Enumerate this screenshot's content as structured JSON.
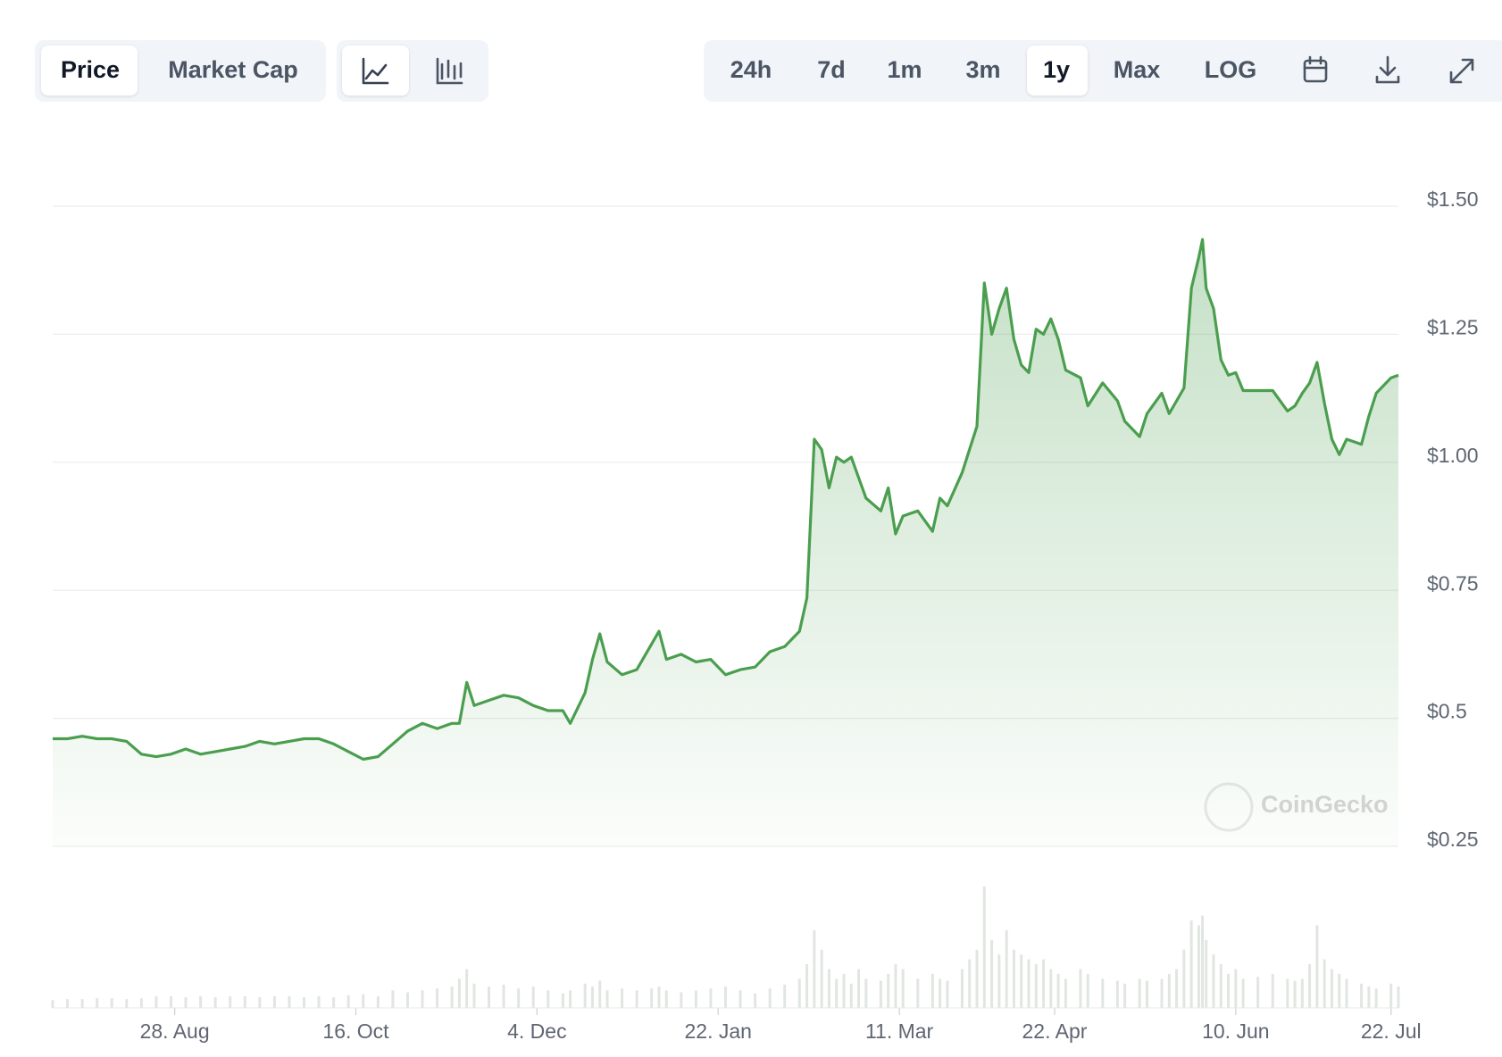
{
  "toolbar": {
    "metrics": [
      "Price",
      "Market Cap"
    ],
    "ranges": [
      "24h",
      "7d",
      "1m",
      "3m",
      "1y",
      "Max",
      "LOG"
    ]
  },
  "chart_data": {
    "type": "area",
    "color": "#4a9e4e",
    "watermark": "CoinGecko",
    "x": [
      0,
      4,
      8,
      12,
      16,
      20,
      24,
      28,
      32,
      36,
      40,
      44,
      48,
      52,
      56,
      60,
      64,
      68,
      72,
      76,
      80,
      84,
      88,
      92,
      96,
      100,
      104,
      108,
      110,
      112,
      114,
      118,
      122,
      126,
      130,
      134,
      138,
      140,
      144,
      146,
      148,
      150,
      154,
      158,
      162,
      164,
      166,
      170,
      174,
      178,
      182,
      186,
      190,
      194,
      198,
      202,
      204,
      206,
      208,
      210,
      212,
      214,
      216,
      218,
      220,
      224,
      226,
      228,
      230,
      234,
      238,
      240,
      242,
      246,
      248,
      250,
      252,
      254,
      256,
      258,
      260,
      262,
      264,
      266,
      268,
      270,
      272,
      274,
      278,
      280,
      284,
      288,
      290,
      294,
      296,
      300,
      302,
      304,
      306,
      308,
      310,
      311,
      312,
      314,
      316,
      318,
      320,
      322,
      326,
      330,
      334,
      336,
      338,
      340,
      342,
      344,
      346,
      348,
      350,
      354,
      356,
      358,
      362,
      364
    ],
    "values": [
      0.46,
      0.46,
      0.465,
      0.46,
      0.46,
      0.455,
      0.43,
      0.425,
      0.43,
      0.44,
      0.43,
      0.435,
      0.44,
      0.445,
      0.455,
      0.45,
      0.455,
      0.46,
      0.46,
      0.45,
      0.435,
      0.42,
      0.425,
      0.45,
      0.475,
      0.49,
      0.48,
      0.49,
      0.49,
      0.57,
      0.525,
      0.535,
      0.545,
      0.54,
      0.525,
      0.515,
      0.515,
      0.49,
      0.55,
      0.615,
      0.665,
      0.61,
      0.585,
      0.595,
      0.645,
      0.67,
      0.615,
      0.625,
      0.61,
      0.615,
      0.585,
      0.595,
      0.6,
      0.63,
      0.64,
      0.67,
      0.735,
      1.045,
      1.025,
      0.95,
      1.01,
      1.0,
      1.01,
      0.97,
      0.93,
      0.905,
      0.95,
      0.86,
      0.895,
      0.905,
      0.865,
      0.93,
      0.915,
      0.98,
      1.025,
      1.07,
      1.35,
      1.25,
      1.3,
      1.34,
      1.24,
      1.19,
      1.175,
      1.26,
      1.25,
      1.28,
      1.24,
      1.18,
      1.165,
      1.11,
      1.155,
      1.12,
      1.08,
      1.05,
      1.095,
      1.135,
      1.095,
      1.12,
      1.145,
      1.34,
      1.4,
      1.435,
      1.34,
      1.3,
      1.2,
      1.17,
      1.175,
      1.14,
      1.14,
      1.14,
      1.1,
      1.11,
      1.135,
      1.155,
      1.195,
      1.115,
      1.045,
      1.015,
      1.045,
      1.035,
      1.09,
      1.135,
      1.165,
      1.17
    ],
    "volumes": [
      8,
      9,
      9,
      10,
      10,
      9,
      10,
      12,
      12,
      11,
      12,
      11,
      12,
      12,
      11,
      12,
      12,
      11,
      12,
      11,
      13,
      14,
      12,
      18,
      16,
      18,
      20,
      22,
      30,
      40,
      25,
      22,
      24,
      20,
      22,
      18,
      15,
      18,
      25,
      22,
      28,
      18,
      20,
      18,
      20,
      22,
      18,
      16,
      18,
      20,
      22,
      18,
      15,
      20,
      24,
      30,
      45,
      80,
      60,
      40,
      30,
      35,
      25,
      40,
      30,
      28,
      35,
      45,
      40,
      30,
      35,
      30,
      28,
      40,
      50,
      60,
      125,
      70,
      55,
      80,
      60,
      55,
      50,
      45,
      50,
      40,
      35,
      30,
      40,
      35,
      30,
      28,
      25,
      30,
      28,
      30,
      35,
      40,
      60,
      90,
      85,
      95,
      70,
      55,
      45,
      35,
      40,
      30,
      32,
      35,
      30,
      28,
      30,
      45,
      85,
      50,
      40,
      35,
      30,
      25,
      22,
      20,
      25,
      22
    ],
    "xlim": [
      0,
      364
    ],
    "xticks": [
      {
        "value": 33,
        "label": "28. Aug"
      },
      {
        "value": 82,
        "label": "16. Oct"
      },
      {
        "value": 131,
        "label": "4. Dec"
      },
      {
        "value": 180,
        "label": "22. Jan"
      },
      {
        "value": 229,
        "label": "11. Mar"
      },
      {
        "value": 271,
        "label": "22. Apr"
      },
      {
        "value": 320,
        "label": "10. Jun"
      },
      {
        "value": 362,
        "label": "22. Jul"
      }
    ],
    "ylim": [
      0.25,
      1.5
    ],
    "yticks": [
      {
        "value": 0.25,
        "label": "$0.25"
      },
      {
        "value": 0.5,
        "label": "$0.5"
      },
      {
        "value": 0.75,
        "label": "$0.75"
      },
      {
        "value": 1.0,
        "label": "$1.00"
      },
      {
        "value": 1.25,
        "label": "$1.25"
      },
      {
        "value": 1.5,
        "label": "$1.50"
      }
    ],
    "grid": true
  }
}
